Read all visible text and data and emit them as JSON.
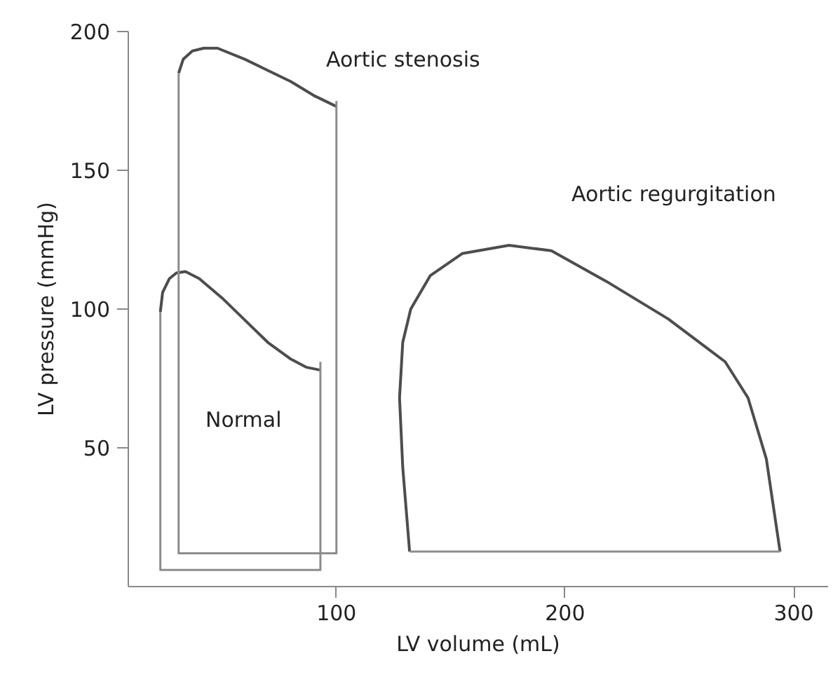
{
  "chart_data": {
    "type": "line",
    "xlabel": "LV volume (mL)",
    "ylabel": "LV pressure (mmHg)",
    "xlim": [
      9,
      315
    ],
    "ylim": [
      0,
      200
    ],
    "xticks": [
      100,
      200,
      300
    ],
    "yticks": [
      50,
      100,
      150,
      200
    ],
    "grid": false,
    "marker": "none",
    "line_style": "solid",
    "series": [
      {
        "color": "#4d4d4d",
        "x": [
          23,
          24,
          27,
          30,
          34,
          40,
          50,
          60,
          70,
          80,
          87,
          93
        ],
        "values": [
          99,
          106,
          111,
          113,
          113.5,
          111,
          104,
          96,
          88,
          82,
          79,
          78
        ]
      },
      {
        "color": "#8c8c8c",
        "x": [
          23,
          23,
          93,
          93
        ],
        "values": [
          99,
          6,
          6,
          81
        ]
      },
      {
        "color": "#4d4d4d",
        "x": [
          31,
          33,
          37,
          42,
          48,
          60,
          70,
          80,
          90,
          100
        ],
        "values": [
          185,
          190,
          193,
          194,
          194,
          190,
          186,
          182,
          177,
          173
        ]
      },
      {
        "color": "#8c8c8c",
        "x": [
          31,
          31,
          100,
          100
        ],
        "values": [
          185,
          12,
          12,
          175
        ]
      },
      {
        "color": "#4d4d4d",
        "x": [
          132,
          129,
          127.6,
          129,
          132.5,
          141,
          155,
          175.5,
          194,
          218,
          245,
          270,
          280,
          288,
          294
        ],
        "values": [
          12.6,
          43,
          68,
          88,
          100,
          112,
          120,
          123,
          121,
          110,
          96.5,
          81,
          68,
          46,
          12.6
        ]
      },
      {
        "color": "#8c8c8c",
        "x": [
          132,
          294
        ],
        "values": [
          12.6,
          12.6
        ]
      }
    ],
    "annotations": [
      "Normal",
      "Aortic stenosis",
      "Aortic regurgitation"
    ]
  }
}
